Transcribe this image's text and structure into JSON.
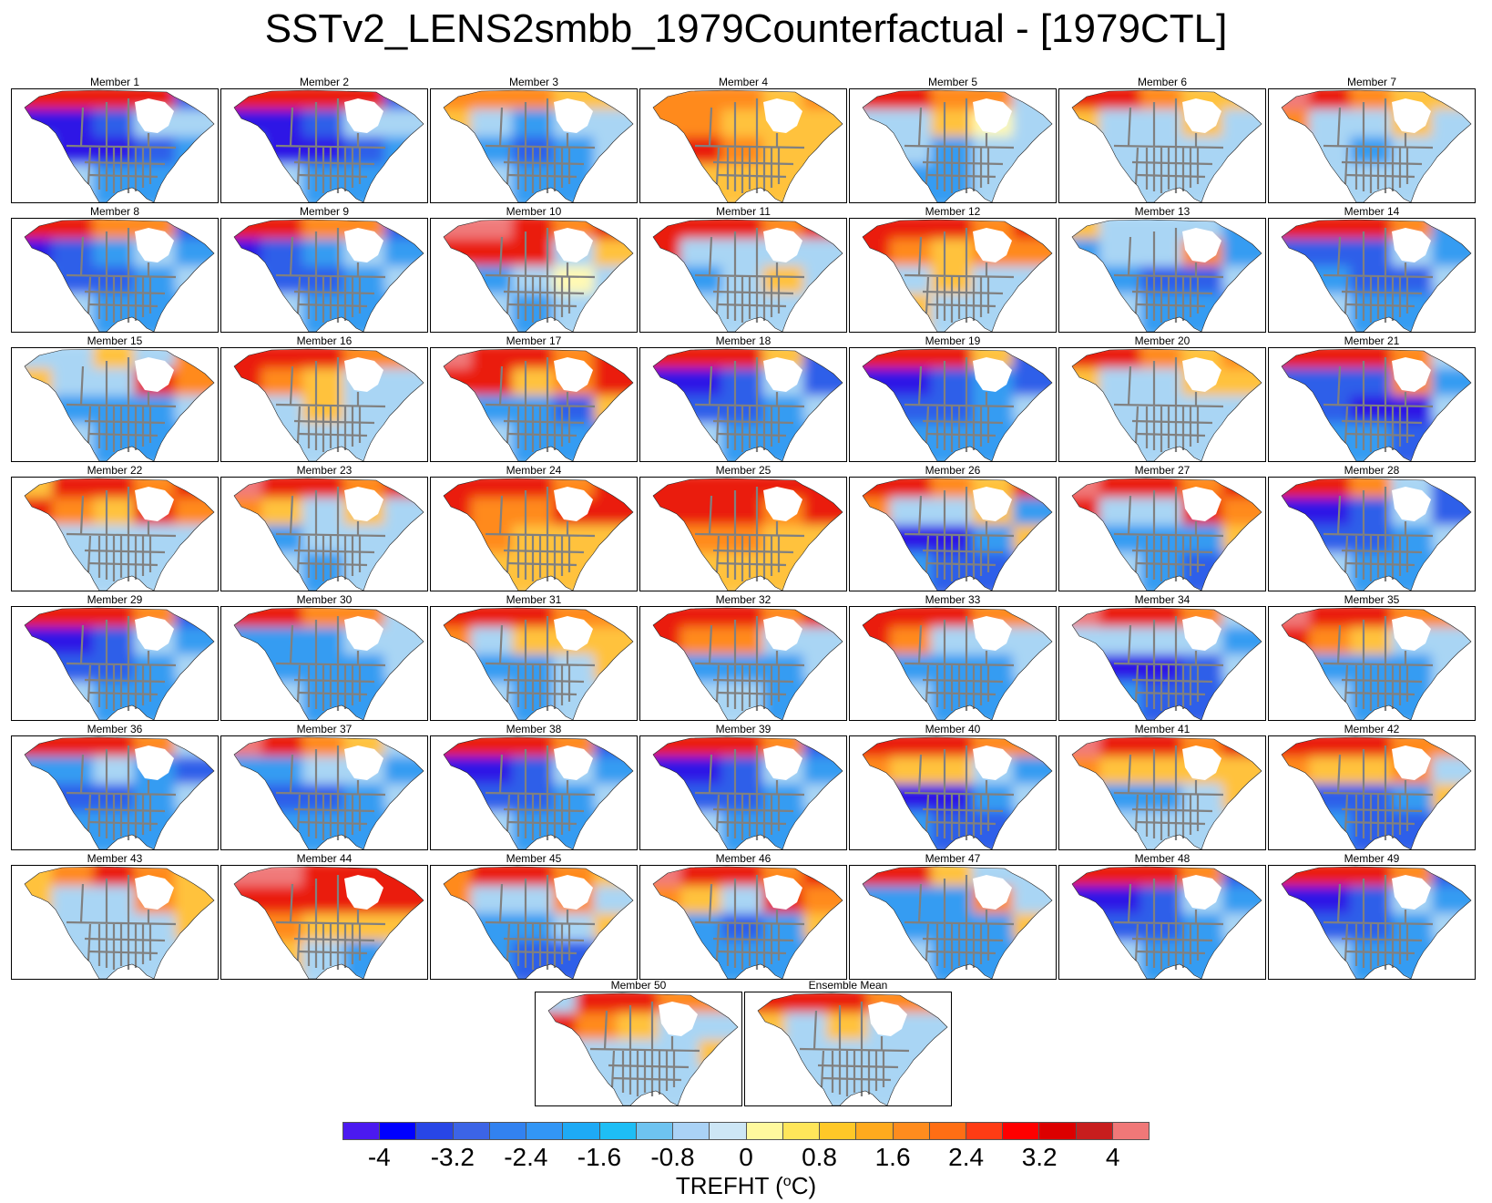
{
  "title": "SSTv2_LENS2smbb_1979Counterfactual - [1979CTL]",
  "panels": [
    {
      "label": "Member 1",
      "pattern": [
        3,
        3,
        3,
        3,
        -3,
        -4,
        -4,
        -3,
        -1,
        -1,
        -2,
        -4,
        -4,
        -3,
        -2,
        -1,
        -1,
        -2,
        -2,
        -2
      ]
    },
    {
      "label": "Member 2",
      "pattern": [
        3,
        3,
        3,
        3,
        -3,
        -4,
        -4,
        -3,
        -1,
        -1,
        -2,
        -4,
        -4,
        -3,
        -2,
        -1,
        -1,
        -2,
        -2,
        -2
      ]
    },
    {
      "label": "Member 3",
      "pattern": [
        2,
        2,
        2,
        1,
        1,
        1,
        -1,
        -2,
        -1,
        -1,
        -2,
        -2,
        -3,
        -2,
        -1,
        -1,
        -1,
        -2,
        -2,
        -1
      ]
    },
    {
      "label": "Member 4",
      "pattern": [
        2,
        2,
        2,
        1,
        2,
        2,
        2,
        1,
        1,
        1,
        2,
        3,
        2,
        1,
        1,
        1,
        1,
        1,
        1,
        1
      ]
    },
    {
      "label": "Member 5",
      "pattern": [
        3,
        3,
        2,
        2,
        -1,
        -1,
        -1,
        1,
        0,
        -1,
        -1,
        -1,
        -2,
        -1,
        -1,
        -1,
        -2,
        -2,
        -1,
        -1
      ]
    },
    {
      "label": "Member 6",
      "pattern": [
        3,
        3,
        2,
        1,
        1,
        1,
        -1,
        -1,
        1,
        -1,
        -1,
        -1,
        -1,
        -1,
        -1,
        -1,
        -1,
        -1,
        -1,
        -1
      ]
    },
    {
      "label": "Member 7",
      "pattern": [
        4,
        3,
        2,
        1,
        1,
        2,
        -1,
        -1,
        1,
        -1,
        -1,
        -1,
        -2,
        -1,
        -1,
        -1,
        -1,
        -1,
        -1,
        -1
      ]
    },
    {
      "label": "Member 8",
      "pattern": [
        3,
        3,
        2,
        2,
        -3,
        -4,
        -3,
        -2,
        -1,
        -2,
        -2,
        -3,
        -3,
        -2,
        -1,
        -1,
        -1,
        -2,
        -2,
        -2
      ]
    },
    {
      "label": "Member 9",
      "pattern": [
        3,
        3,
        2,
        2,
        -3,
        -4,
        -3,
        -2,
        -1,
        -2,
        -2,
        -3,
        -3,
        -2,
        -1,
        -1,
        -1,
        -2,
        -2,
        -2
      ]
    },
    {
      "label": "Member 10",
      "pattern": [
        4,
        4,
        3,
        2,
        3,
        3,
        3,
        3,
        -1,
        1,
        -1,
        -2,
        -1,
        0,
        -1,
        -1,
        -1,
        -2,
        -1,
        -1
      ]
    },
    {
      "label": "Member 11",
      "pattern": [
        3,
        3,
        3,
        2,
        3,
        3,
        -1,
        -1,
        -1,
        -1,
        -2,
        -2,
        -1,
        1,
        -1,
        -1,
        -1,
        -1,
        -1,
        -1
      ]
    },
    {
      "label": "Member 12",
      "pattern": [
        3,
        3,
        3,
        2,
        3,
        3,
        2,
        1,
        2,
        2,
        -1,
        -1,
        1,
        -1,
        -1,
        -1,
        1,
        -1,
        -1,
        -1
      ]
    },
    {
      "label": "Member 13",
      "pattern": [
        1,
        -1,
        -1,
        -1,
        -2,
        -2,
        -1,
        -1,
        2,
        -2,
        -2,
        -2,
        -3,
        -3,
        -1,
        1,
        -1,
        -2,
        -2,
        -3
      ]
    },
    {
      "label": "Member 14",
      "pattern": [
        3,
        3,
        3,
        2,
        -2,
        -3,
        -3,
        -3,
        -1,
        -2,
        -2,
        -2,
        -3,
        -3,
        -1,
        -1,
        -1,
        -2,
        -2,
        -3
      ]
    },
    {
      "label": "Member 15",
      "pattern": [
        -1,
        -1,
        1,
        -1,
        2,
        1,
        -1,
        -1,
        3,
        2,
        -1,
        -2,
        -2,
        -2,
        -1,
        -1,
        -1,
        -2,
        -2,
        -2
      ]
    },
    {
      "label": "Member 16",
      "pattern": [
        3,
        3,
        3,
        2,
        2,
        3,
        2,
        1,
        -1,
        -1,
        -1,
        -1,
        1,
        -1,
        -1,
        -1,
        -1,
        -1,
        -1,
        -1
      ]
    },
    {
      "label": "Member 17",
      "pattern": [
        4,
        3,
        3,
        2,
        3,
        3,
        3,
        1,
        2,
        3,
        -1,
        -2,
        -2,
        -3,
        1,
        2,
        -1,
        -2,
        -2,
        -3
      ]
    },
    {
      "label": "Member 18",
      "pattern": [
        3,
        3,
        3,
        1,
        -3,
        -4,
        -4,
        -3,
        -1,
        -3,
        -3,
        -3,
        -3,
        -2,
        -1,
        -1,
        -1,
        -2,
        -2,
        -2
      ]
    },
    {
      "label": "Member 19",
      "pattern": [
        3,
        3,
        3,
        1,
        -3,
        -4,
        -4,
        -3,
        -2,
        -3,
        -3,
        -3,
        -3,
        -2,
        -1,
        -1,
        -2,
        -2,
        -2,
        -2
      ]
    },
    {
      "label": "Member 20",
      "pattern": [
        3,
        3,
        2,
        1,
        2,
        1,
        -1,
        -1,
        1,
        1,
        -1,
        -1,
        -1,
        -1,
        -1,
        -1,
        -1,
        -1,
        -1,
        -1
      ]
    },
    {
      "label": "Member 21",
      "pattern": [
        3,
        3,
        3,
        2,
        -1,
        -3,
        -3,
        -3,
        2,
        -2,
        -3,
        -3,
        -4,
        -4,
        -1,
        -1,
        -2,
        -2,
        -3,
        -3
      ]
    },
    {
      "label": "Member 22",
      "pattern": [
        1,
        3,
        3,
        2,
        3,
        3,
        2,
        1,
        3,
        2,
        -1,
        -1,
        -1,
        -1,
        -1,
        1,
        -1,
        -1,
        -1,
        -1
      ]
    },
    {
      "label": "Member 23",
      "pattern": [
        4,
        3,
        3,
        2,
        3,
        2,
        1,
        -1,
        1,
        -1,
        -1,
        -2,
        -1,
        -1,
        -1,
        -1,
        -1,
        -2,
        -1,
        -1
      ]
    },
    {
      "label": "Member 24",
      "pattern": [
        3,
        3,
        3,
        2,
        3,
        3,
        2,
        2,
        3,
        3,
        2,
        2,
        1,
        1,
        1,
        2,
        1,
        1,
        1,
        1
      ]
    },
    {
      "label": "Member 25",
      "pattern": [
        3,
        3,
        3,
        3,
        3,
        3,
        3,
        3,
        2,
        3,
        2,
        2,
        2,
        1,
        1,
        1,
        1,
        1,
        1,
        1
      ]
    },
    {
      "label": "Member 26",
      "pattern": [
        3,
        3,
        2,
        1,
        3,
        2,
        -1,
        -1,
        1,
        -2,
        -3,
        -4,
        -4,
        -2,
        1,
        -1,
        -2,
        -3,
        -3,
        -2
      ]
    },
    {
      "label": "Member 27",
      "pattern": [
        4,
        3,
        3,
        2,
        3,
        3,
        -1,
        -1,
        3,
        2,
        -2,
        -2,
        -2,
        -2,
        1,
        2,
        -1,
        -2,
        -3,
        -2
      ]
    },
    {
      "label": "Member 28",
      "pattern": [
        3,
        3,
        2,
        -1,
        -3,
        -4,
        -4,
        -3,
        -1,
        -3,
        -3,
        -3,
        -3,
        -2,
        -1,
        -1,
        -1,
        -2,
        -2,
        -2
      ]
    },
    {
      "label": "Member 29",
      "pattern": [
        3,
        3,
        3,
        2,
        -3,
        -4,
        -4,
        -3,
        -1,
        -2,
        -3,
        -3,
        -3,
        -2,
        -1,
        -1,
        -1,
        -2,
        -2,
        -2
      ]
    },
    {
      "label": "Member 30",
      "pattern": [
        3,
        3,
        2,
        2,
        -1,
        -2,
        -2,
        -2,
        -1,
        -1,
        -2,
        -2,
        -2,
        -2,
        -1,
        -1,
        -1,
        -2,
        -2,
        -2
      ]
    },
    {
      "label": "Member 31",
      "pattern": [
        3,
        3,
        3,
        2,
        2,
        2,
        -1,
        1,
        1,
        1,
        -1,
        -2,
        -2,
        -1,
        1,
        1,
        -1,
        -2,
        -1,
        -1
      ]
    },
    {
      "label": "Member 32",
      "pattern": [
        3,
        3,
        3,
        2,
        3,
        3,
        2,
        2,
        -1,
        -1,
        -2,
        -2,
        -2,
        -2,
        -1,
        -1,
        -1,
        -1,
        -2,
        -2
      ]
    },
    {
      "label": "Member 33",
      "pattern": [
        3,
        3,
        3,
        2,
        2,
        3,
        2,
        -1,
        -1,
        -1,
        -2,
        -2,
        -2,
        -2,
        -1,
        -1,
        -1,
        -2,
        -2,
        -2
      ]
    },
    {
      "label": "Member 34",
      "pattern": [
        4,
        3,
        3,
        2,
        -1,
        -1,
        -1,
        -1,
        -1,
        -2,
        -3,
        -4,
        -4,
        -3,
        -1,
        -2,
        -2,
        -3,
        -3,
        -2
      ]
    },
    {
      "label": "Member 35",
      "pattern": [
        4,
        3,
        3,
        2,
        2,
        3,
        2,
        1,
        -1,
        -1,
        -2,
        -2,
        -2,
        -2,
        -1,
        -1,
        -1,
        -2,
        -2,
        -1
      ]
    },
    {
      "label": "Member 36",
      "pattern": [
        3,
        3,
        3,
        2,
        -1,
        -2,
        -2,
        -1,
        -2,
        -3,
        -3,
        -3,
        -3,
        -2,
        -1,
        -2,
        -2,
        -2,
        -2,
        -2
      ]
    },
    {
      "label": "Member 37",
      "pattern": [
        4,
        3,
        2,
        1,
        -1,
        -2,
        -2,
        -1,
        -1,
        -2,
        -3,
        -3,
        -3,
        -2,
        -1,
        -2,
        -2,
        -2,
        -2,
        -2
      ]
    },
    {
      "label": "Member 38",
      "pattern": [
        3,
        3,
        3,
        2,
        -3,
        -4,
        -4,
        -3,
        -1,
        -2,
        -3,
        -3,
        -3,
        -2,
        -1,
        -1,
        -1,
        -2,
        -2,
        -2
      ]
    },
    {
      "label": "Member 39",
      "pattern": [
        3,
        3,
        3,
        2,
        -3,
        -4,
        -4,
        -3,
        -1,
        -2,
        -3,
        -3,
        -3,
        -2,
        -1,
        -1,
        -1,
        -2,
        -2,
        -2
      ]
    },
    {
      "label": "Member 40",
      "pattern": [
        3,
        3,
        3,
        2,
        2,
        2,
        1,
        1,
        -1,
        -2,
        -3,
        -4,
        -4,
        -2,
        -1,
        -1,
        -2,
        -3,
        -3,
        -2
      ]
    },
    {
      "label": "Member 41",
      "pattern": [
        4,
        3,
        3,
        2,
        3,
        2,
        1,
        1,
        1,
        1,
        -1,
        -2,
        -2,
        -1,
        1,
        1,
        -1,
        -1,
        -1,
        -1
      ]
    },
    {
      "label": "Member 42",
      "pattern": [
        3,
        3,
        3,
        2,
        2,
        2,
        1,
        1,
        2,
        -1,
        -2,
        -3,
        -3,
        -2,
        1,
        -1,
        -2,
        -3,
        -3,
        -2
      ]
    },
    {
      "label": "Member 43",
      "pattern": [
        1,
        2,
        3,
        2,
        1,
        1,
        -1,
        -1,
        2,
        1,
        -1,
        -1,
        -1,
        -1,
        1,
        -1,
        -1,
        -1,
        -1,
        -1
      ]
    },
    {
      "label": "Member 44",
      "pattern": [
        4,
        4,
        3,
        3,
        3,
        3,
        3,
        3,
        3,
        3,
        2,
        2,
        1,
        1,
        1,
        2,
        1,
        -1,
        -2,
        -1
      ]
    },
    {
      "label": "Member 45",
      "pattern": [
        2,
        3,
        3,
        2,
        1,
        2,
        -1,
        -1,
        2,
        -1,
        -2,
        -2,
        -2,
        -1,
        1,
        -1,
        -2,
        -3,
        -3,
        -2
      ]
    },
    {
      "label": "Member 46",
      "pattern": [
        4,
        3,
        3,
        2,
        3,
        2,
        1,
        -1,
        3,
        2,
        -1,
        -2,
        -3,
        -2,
        1,
        -1,
        -2,
        -2,
        -2,
        -2
      ]
    },
    {
      "label": "Member 47",
      "pattern": [
        3,
        3,
        1,
        -1,
        -1,
        -2,
        -2,
        -2,
        2,
        -1,
        -2,
        -2,
        -2,
        -2,
        1,
        -1,
        -1,
        -2,
        -2,
        -2
      ]
    },
    {
      "label": "Member 48",
      "pattern": [
        3,
        3,
        3,
        2,
        -3,
        -4,
        -4,
        -3,
        -1,
        -2,
        -3,
        -3,
        -3,
        -2,
        -1,
        -1,
        -1,
        -2,
        -2,
        -2
      ]
    },
    {
      "label": "Member 49",
      "pattern": [
        3,
        3,
        3,
        2,
        -3,
        -4,
        -4,
        -3,
        -1,
        -2,
        -3,
        -3,
        -3,
        -2,
        -1,
        -1,
        -1,
        -2,
        -2,
        -2
      ]
    },
    {
      "label": "Member 50",
      "pattern": [
        -1,
        3,
        3,
        2,
        2,
        3,
        2,
        1,
        -1,
        -1,
        -1,
        -1,
        -1,
        -1,
        1,
        -1,
        -1,
        -1,
        -1,
        -1
      ]
    },
    {
      "label": "Ensemble Mean",
      "pattern": [
        3,
        3,
        3,
        2,
        2,
        1,
        -1,
        1,
        -1,
        -1,
        -1,
        -1,
        -1,
        -1,
        -1,
        -1,
        -1,
        -1,
        -1,
        -1
      ]
    }
  ],
  "colorbar": {
    "colors": [
      "#4b19f0",
      "#0000ff",
      "#2846e6",
      "#3c64e6",
      "#3282f0",
      "#3296f5",
      "#1eaaf5",
      "#1ebef5",
      "#6ec3f0",
      "#aad2f5",
      "#cde6f5",
      "#fff99e",
      "#ffe65a",
      "#ffc828",
      "#ffaa1e",
      "#ff8c1e",
      "#ff6e14",
      "#ff3c14",
      "#ff0000",
      "#dc0000",
      "#c81e1e",
      "#f07878"
    ],
    "ticks": [
      "-4",
      "-3.2",
      "-2.4",
      "-1.6",
      "-0.8",
      "0",
      "0.8",
      "1.6",
      "2.4",
      "3.2",
      "4"
    ],
    "title_prefix": "TREFHT (",
    "title_sup": "o",
    "title_suffix": "C)"
  },
  "palette": {
    "-4": "#2d14e6",
    "-3": "#2f5ee9",
    "-2": "#359cf2",
    "-1": "#a9d5f4",
    "0": "#fff9b4",
    "1": "#ffc23c",
    "2": "#ff8a1e",
    "3": "#ea1e10",
    "4": "#f07a7a",
    "land_none": "#ffffff",
    "border": "#808080",
    "coast": "#222222"
  }
}
